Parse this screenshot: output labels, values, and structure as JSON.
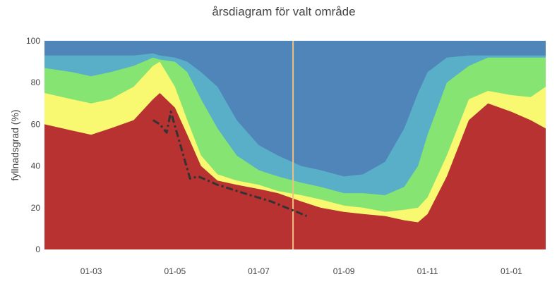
{
  "chart_data": {
    "type": "area",
    "title": "årsdiagram för valt område",
    "xlabel": "",
    "ylabel": "fyllnadsgrad (%)",
    "ylim": [
      0,
      100
    ],
    "xlim": [
      "2023-01-26",
      "2024-01-26"
    ],
    "grid": true,
    "x_tick_labels": [
      "01-03",
      "01-05",
      "01-07",
      "01-09",
      "01-11",
      "01-01"
    ],
    "x_tick_dates": [
      "2023-03-01",
      "2023-05-01",
      "2023-07-01",
      "2023-09-01",
      "2023-11-01",
      "2024-01-01"
    ],
    "y_ticks": [
      0,
      20,
      40,
      60,
      80,
      100
    ],
    "colors": {
      "band_min": "#b83232",
      "band_q1": "#f9f871",
      "band_median": "#86e572",
      "band_q3": "#5aafc8",
      "band_max": "#4f85b8",
      "current_year_line": "#333333",
      "today_marker": "#f0c080"
    },
    "bands": {
      "x": [
        "2023-01-26",
        "2023-02-15",
        "2023-03-01",
        "2023-03-15",
        "2023-04-01",
        "2023-04-15",
        "2023-04-20",
        "2023-05-01",
        "2023-05-10",
        "2023-05-20",
        "2023-06-01",
        "2023-06-15",
        "2023-07-01",
        "2023-07-15",
        "2023-08-01",
        "2023-08-15",
        "2023-09-01",
        "2023-09-15",
        "2023-10-01",
        "2023-10-15",
        "2023-10-25",
        "2023-11-01",
        "2023-11-15",
        "2023-12-01",
        "2023-12-15",
        "2024-01-01",
        "2024-01-15",
        "2024-01-26"
      ],
      "levels": [
        [
          60,
          57,
          55,
          58,
          62,
          72,
          75,
          68,
          55,
          40,
          33,
          31,
          29,
          27,
          23,
          20,
          18,
          17,
          16,
          14,
          13,
          17,
          35,
          62,
          70,
          66,
          62,
          58
        ],
        [
          75,
          72,
          70,
          72,
          78,
          88,
          90,
          78,
          62,
          45,
          36,
          33,
          31,
          28,
          26,
          24,
          21,
          20,
          18,
          19,
          20,
          25,
          45,
          72,
          76,
          74,
          73,
          78
        ],
        [
          87,
          85,
          83,
          85,
          88,
          92,
          91,
          90,
          85,
          72,
          58,
          45,
          38,
          35,
          32,
          30,
          27,
          27,
          26,
          30,
          40,
          55,
          80,
          88,
          92,
          92,
          92,
          92
        ],
        [
          93,
          93,
          93,
          93,
          93,
          94,
          93,
          92,
          90,
          85,
          78,
          62,
          50,
          45,
          40,
          38,
          35,
          36,
          42,
          58,
          75,
          85,
          92,
          93,
          93,
          93,
          93,
          93
        ],
        [
          100,
          100,
          100,
          100,
          100,
          100,
          100,
          100,
          100,
          100,
          100,
          100,
          100,
          100,
          100,
          100,
          100,
          100,
          100,
          100,
          100,
          100,
          100,
          100,
          100,
          100,
          100,
          100
        ]
      ]
    },
    "current_year": {
      "x": [
        "2023-04-15",
        "2023-04-20",
        "2023-04-25",
        "2023-04-28",
        "2023-05-05",
        "2023-05-12",
        "2023-05-18",
        "2023-06-01",
        "2023-06-20",
        "2023-07-10",
        "2023-07-25",
        "2023-08-05"
      ],
      "y": [
        62,
        60,
        56,
        66,
        50,
        34,
        35,
        31,
        27,
        23,
        19,
        16
      ]
    },
    "today": "2023-07-26"
  }
}
